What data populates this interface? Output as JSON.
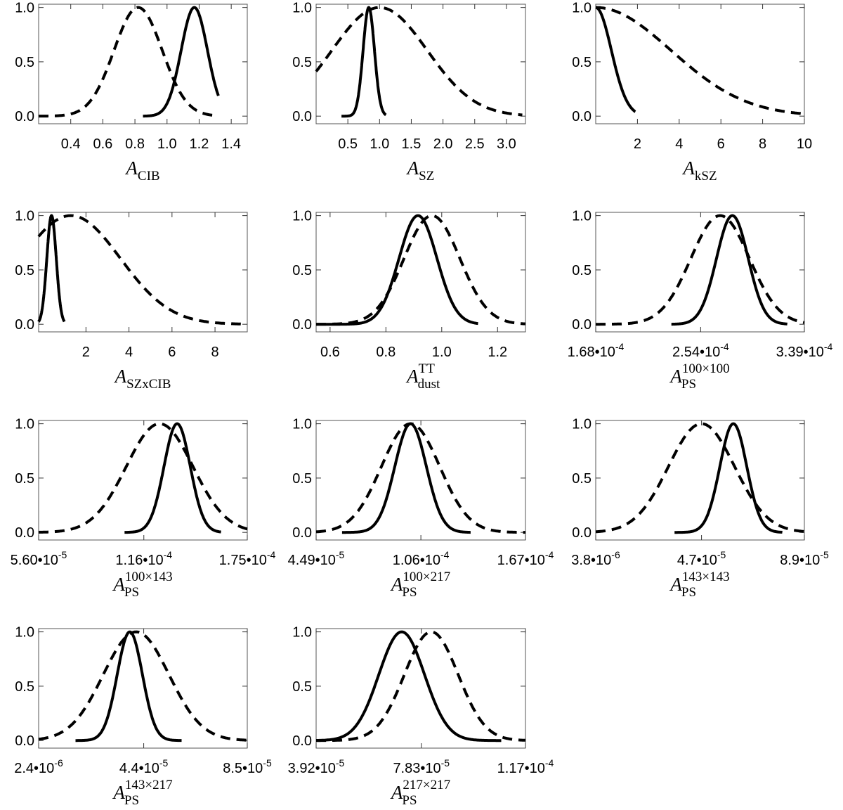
{
  "chart_data": [
    {
      "type": "line",
      "xlabel": {
        "main": "A",
        "sub": "CIB",
        "sup": ""
      },
      "xlim": [
        0.2,
        1.5
      ],
      "xticks": [
        "0.4",
        "0.6",
        "0.8",
        "1.0",
        "1.2",
        "1.4"
      ],
      "xtick_values": [
        0.4,
        0.6,
        0.8,
        1.0,
        1.2,
        1.4
      ],
      "ylim": [
        -0.07,
        1.03
      ],
      "yticks": [
        "0.0",
        "0.5",
        "1.0"
      ],
      "series": [
        {
          "style": "solid",
          "peak": 1.17,
          "sigma": 0.082,
          "range": [
            0.85,
            1.32
          ]
        },
        {
          "style": "dashed",
          "peak": 0.82,
          "sigma": 0.15,
          "range": [
            0.2,
            1.3
          ]
        }
      ]
    },
    {
      "type": "line",
      "xlabel": {
        "main": "A",
        "sub": "SZ",
        "sup": ""
      },
      "xlim": [
        0.0,
        3.3
      ],
      "xticks": [
        "0.5",
        "1.0",
        "1.5",
        "2.0",
        "2.5",
        "3.0"
      ],
      "xtick_values": [
        0.5,
        1.0,
        1.5,
        2.0,
        2.5,
        3.0
      ],
      "ylim": [
        -0.07,
        1.03
      ],
      "yticks": [
        "0.0",
        "0.5",
        "1.0"
      ],
      "series": [
        {
          "style": "solid",
          "peak": 0.83,
          "sigma": 0.09,
          "range": [
            0.4,
            1.1
          ]
        },
        {
          "style": "dashed",
          "peak": 1.0,
          "sigma": 0.75,
          "range": [
            0.0,
            3.25
          ]
        }
      ]
    },
    {
      "type": "line",
      "xlabel": {
        "main": "A",
        "sub": "kSZ",
        "sup": ""
      },
      "xlim": [
        0.0,
        10.0
      ],
      "xticks": [
        "2",
        "4",
        "6",
        "8",
        "10"
      ],
      "xtick_values": [
        2,
        4,
        6,
        8,
        10
      ],
      "ylim": [
        -0.07,
        1.03
      ],
      "yticks": [
        "0.0",
        "0.5",
        "1.0"
      ],
      "series": [
        {
          "style": "solid",
          "peak": 0.0,
          "sigma": 0.75,
          "range": [
            0.0,
            1.9
          ]
        },
        {
          "style": "dashed",
          "peak": 0.0,
          "sigma": 3.6,
          "range": [
            0.0,
            10.0
          ]
        }
      ]
    },
    {
      "type": "line",
      "xlabel": {
        "main": "A",
        "sub": "SZxCIB",
        "sup": ""
      },
      "xlim": [
        -0.2,
        9.5
      ],
      "xticks": [
        "2",
        "4",
        "6",
        "8"
      ],
      "xtick_values": [
        2,
        4,
        6,
        8
      ],
      "ylim": [
        -0.07,
        1.03
      ],
      "yticks": [
        "0.0",
        "0.5",
        "1.0"
      ],
      "series": [
        {
          "style": "solid",
          "peak": 0.4,
          "sigma": 0.22,
          "range": [
            -0.2,
            1.0
          ]
        },
        {
          "style": "dashed",
          "peak": 1.3,
          "sigma": 2.3,
          "range": [
            -0.2,
            9.2
          ]
        }
      ]
    },
    {
      "type": "line",
      "xlabel": {
        "main": "A",
        "sub": "dust",
        "sup": "TT"
      },
      "xlim": [
        0.55,
        1.3
      ],
      "xticks": [
        "0.6",
        "0.8",
        "1.0",
        "1.2"
      ],
      "xtick_values": [
        0.6,
        0.8,
        1.0,
        1.2
      ],
      "ylim": [
        -0.07,
        1.03
      ],
      "yticks": [
        "0.0",
        "0.5",
        "1.0"
      ],
      "series": [
        {
          "style": "solid",
          "peak": 0.915,
          "sigma": 0.068,
          "range": [
            0.55,
            1.13
          ]
        },
        {
          "style": "dashed",
          "peak": 0.965,
          "sigma": 0.1,
          "range": [
            0.55,
            1.3
          ]
        }
      ]
    },
    {
      "type": "line",
      "xlabel": {
        "main": "A",
        "sub": "PS",
        "sup": "100×100"
      },
      "xlim": [
        1.68,
        3.39
      ],
      "xticks": [
        "1.68•10",
        "2.54•10",
        "3.39•10"
      ],
      "xtick_exponents": [
        "-4",
        "-4",
        "-4"
      ],
      "xtick_values": [
        1.68,
        2.54,
        3.39
      ],
      "ylim": [
        -0.07,
        1.03
      ],
      "yticks": [
        "0.0",
        "0.5",
        "1.0"
      ],
      "series": [
        {
          "style": "solid",
          "peak": 2.8,
          "sigma": 0.13,
          "range": [
            2.3,
            3.25
          ]
        },
        {
          "style": "dashed",
          "peak": 2.7,
          "sigma": 0.24,
          "range": [
            1.68,
            3.39
          ]
        }
      ]
    },
    {
      "type": "line",
      "xlabel": {
        "main": "A",
        "sub": "PS",
        "sup": "100×143"
      },
      "xlim": [
        0.56,
        1.75
      ],
      "xticks": [
        "5.60•10",
        "1.16•10",
        "1.75•10"
      ],
      "xtick_exponents": [
        "-5",
        "-4",
        "-4"
      ],
      "xtick_values": [
        0.56,
        1.16,
        1.75
      ],
      "ylim": [
        -0.07,
        1.03
      ],
      "yticks": [
        "0.0",
        "0.5",
        "1.0"
      ],
      "series": [
        {
          "style": "solid",
          "peak": 1.35,
          "sigma": 0.075,
          "range": [
            1.05,
            1.6
          ]
        },
        {
          "style": "dashed",
          "peak": 1.25,
          "sigma": 0.19,
          "range": [
            0.56,
            1.75
          ]
        }
      ]
    },
    {
      "type": "line",
      "xlabel": {
        "main": "A",
        "sub": "PS",
        "sup": "100×217"
      },
      "xlim": [
        0.449,
        1.67
      ],
      "xticks": [
        "4.49•10",
        "1.06•10",
        "1.67•10"
      ],
      "xtick_exponents": [
        "-5",
        "-4",
        "-4"
      ],
      "xtick_values": [
        0.449,
        1.06,
        1.67
      ],
      "ylim": [
        -0.07,
        1.03
      ],
      "yticks": [
        "0.0",
        "0.5",
        "1.0"
      ],
      "series": [
        {
          "style": "solid",
          "peak": 1.0,
          "sigma": 0.092,
          "range": [
            0.6,
            1.35
          ]
        },
        {
          "style": "dashed",
          "peak": 1.0,
          "sigma": 0.17,
          "range": [
            0.449,
            1.67
          ]
        }
      ]
    },
    {
      "type": "line",
      "xlabel": {
        "main": "A",
        "sub": "PS",
        "sup": "143×143"
      },
      "xlim": [
        0.38,
        8.9
      ],
      "xticks": [
        "3.8•10",
        "4.7•10",
        "8.9•10"
      ],
      "xtick_exponents": [
        "-6",
        "-5",
        "-5"
      ],
      "xtick_values": [
        0.38,
        4.7,
        8.9
      ],
      "ylim": [
        -0.07,
        1.03
      ],
      "yticks": [
        "0.0",
        "0.5",
        "1.0"
      ],
      "series": [
        {
          "style": "solid",
          "peak": 6.0,
          "sigma": 0.55,
          "range": [
            3.6,
            8.0
          ]
        },
        {
          "style": "dashed",
          "peak": 4.7,
          "sigma": 1.35,
          "range": [
            0.38,
            8.9
          ]
        }
      ]
    },
    {
      "type": "line",
      "xlabel": {
        "main": "A",
        "sub": "PS",
        "sup": "143×217"
      },
      "xlim": [
        0.24,
        8.5
      ],
      "xticks": [
        "2.4•10",
        "4.4•10",
        "8.5•10"
      ],
      "xtick_exponents": [
        "-6",
        "-5",
        "-5"
      ],
      "xtick_values": [
        0.24,
        4.4,
        8.5
      ],
      "ylim": [
        -0.07,
        1.03
      ],
      "yticks": [
        "0.0",
        "0.5",
        "1.0"
      ],
      "series": [
        {
          "style": "solid",
          "peak": 3.85,
          "sigma": 0.5,
          "range": [
            1.7,
            5.9
          ]
        },
        {
          "style": "dashed",
          "peak": 4.1,
          "sigma": 1.3,
          "range": [
            0.24,
            8.5
          ]
        }
      ]
    },
    {
      "type": "line",
      "xlabel": {
        "main": "A",
        "sub": "PS",
        "sup": "217×217"
      },
      "xlim": [
        3.92,
        11.7
      ],
      "xticks": [
        "3.92•10",
        "7.83•10",
        "1.17•10"
      ],
      "xtick_exponents": [
        "-5",
        "-5",
        "-4"
      ],
      "xtick_values": [
        3.92,
        7.83,
        11.7
      ],
      "ylim": [
        -0.07,
        1.03
      ],
      "yticks": [
        "0.0",
        "0.5",
        "1.0"
      ],
      "series": [
        {
          "style": "solid",
          "peak": 7.1,
          "sigma": 0.85,
          "range": [
            3.92,
            10.8
          ]
        },
        {
          "style": "dashed",
          "peak": 8.2,
          "sigma": 1.0,
          "range": [
            3.92,
            11.7
          ]
        }
      ]
    }
  ]
}
